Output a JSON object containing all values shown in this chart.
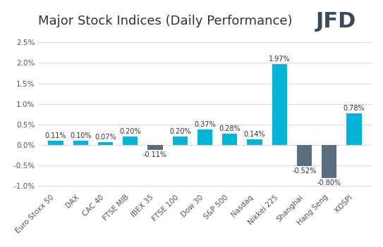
{
  "title": "Major Stock Indices (Daily Performance)",
  "categories": [
    "Euro Stoxx 50",
    "DAX",
    "CAC 40",
    "FTSE MIB",
    "IBEX 35",
    "FTSE 100",
    "Dow 30",
    "S&P 500",
    "Nasdaq",
    "Nikkei 225",
    "Shanghai",
    "Hang Seng",
    "KOSPI"
  ],
  "values": [
    0.11,
    0.1,
    0.07,
    0.2,
    -0.11,
    0.2,
    0.37,
    0.28,
    0.14,
    1.97,
    -0.52,
    -0.8,
    0.78
  ],
  "bar_colors_positive": "#00b4d8",
  "bar_colors_negative": "#5a6e7f",
  "ylim": [
    -1.1,
    2.75
  ],
  "yticks": [
    -1.0,
    -0.5,
    0.0,
    0.5,
    1.0,
    1.5,
    2.0,
    2.5
  ],
  "background_color": "#ffffff",
  "grid_color": "#d8d8d8",
  "title_fontsize": 13,
  "tick_fontsize": 7.5,
  "label_fontsize": 7,
  "logo_text": "JFD",
  "logo_fontsize": 22,
  "logo_color": "#3a4a5c"
}
